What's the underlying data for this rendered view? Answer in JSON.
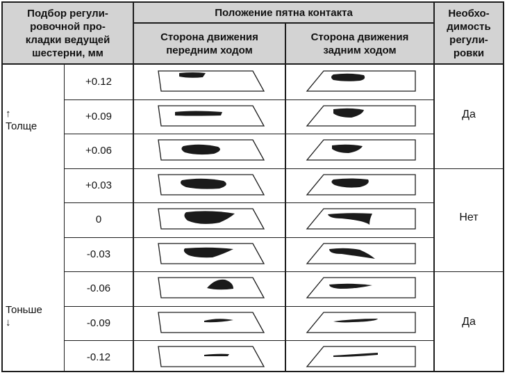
{
  "headers": {
    "shim": "Подбор регули-\nровочной про-\nкладки ведущей\nшестерни, мм",
    "position": "Положение пятна контакта",
    "forward": "Сторона движения\nпередним ходом",
    "reverse": "Сторона движения\nзадним ходом",
    "need": "Необхо-\nдимость\nрегули-\nровки"
  },
  "thicker_label": "↑\nТолще",
  "thinner_label": "Тоньше\n↓",
  "rows": [
    {
      "shim": "+0.12"
    },
    {
      "shim": "+0.09"
    },
    {
      "shim": "+0.06"
    },
    {
      "shim": "+0.03"
    },
    {
      "shim": "0"
    },
    {
      "shim": "-0.03"
    },
    {
      "shim": "-0.06"
    },
    {
      "shim": "-0.09"
    },
    {
      "shim": "-0.12"
    }
  ],
  "adjustment_groups": [
    {
      "label": "Да"
    },
    {
      "label": "Нет"
    },
    {
      "label": "Да"
    }
  ]
}
